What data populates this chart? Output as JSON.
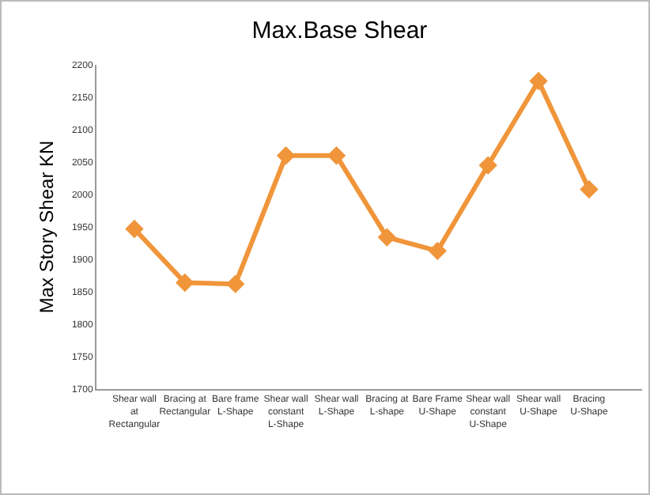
{
  "chart_data": {
    "type": "line",
    "title": "Max.Base Shear",
    "ylabel": "Max Story Shear KN",
    "categories": [
      "Shear wall at Rectangular",
      "Bracing at Rectangular",
      "Bare frame L-Shape",
      "Shear wall constant L-Shape",
      "Shear wall L-Shape",
      "Bracing at L-shape",
      "Bare Frame U-Shape",
      "Shear wall constant U-Shape",
      "Shear wall U-Shape",
      "Bracing U-Shape"
    ],
    "series": [
      {
        "color": "#f0953a",
        "values": [
          1947,
          1864,
          1862,
          2060,
          2060,
          1934,
          1913,
          2045,
          2175,
          2008
        ]
      }
    ],
    "ylim": [
      1700,
      2200
    ],
    "yticks": [
      1700,
      1750,
      1800,
      1850,
      1900,
      1950,
      2000,
      2050,
      2100,
      2150,
      2200
    ],
    "marker": "diamond",
    "line_style": "solid",
    "grid": false
  }
}
